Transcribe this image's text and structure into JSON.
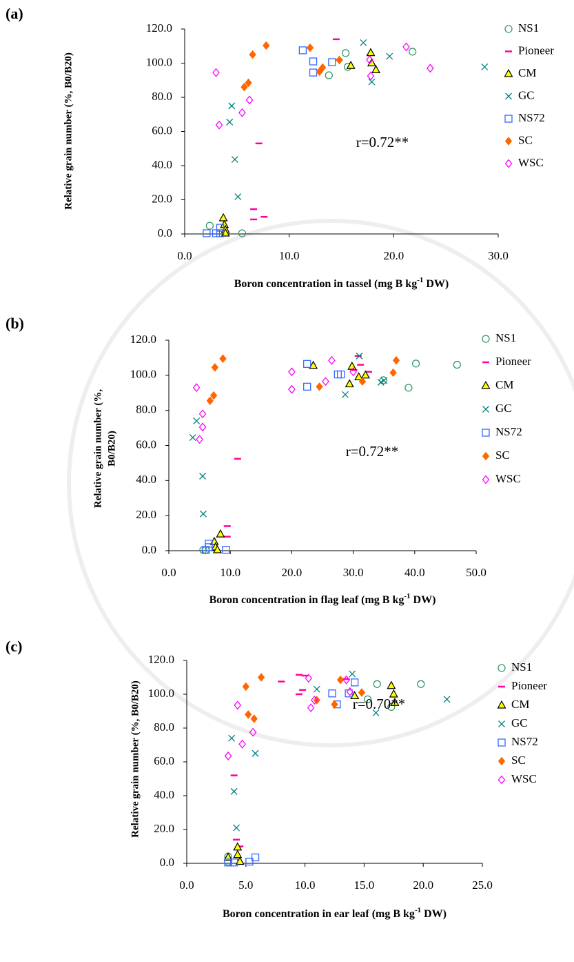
{
  "chart_data": [
    {
      "type": "scatter",
      "panel": "(a)",
      "ylabel": [
        "Relative grain number (%, B0/B20)"
      ],
      "xlabel": [
        "Boron concentration in tassel (mg B kg",
        "-1",
        " DW)"
      ],
      "annotation": "r=0.72**",
      "xlim": [
        0,
        30
      ],
      "ylim": [
        0,
        120
      ],
      "xticks": [
        {
          "value": 0,
          "label": "0.0"
        },
        {
          "value": 10,
          "label": "10.0"
        },
        {
          "value": 20,
          "label": "20.0"
        },
        {
          "value": 30,
          "label": "30.0"
        }
      ],
      "yticks": [
        {
          "value": 0,
          "label": "0.0"
        },
        {
          "value": 20,
          "label": "20.0"
        },
        {
          "value": 40,
          "label": "40.0"
        },
        {
          "value": 60,
          "label": "60.0"
        },
        {
          "value": 80,
          "label": "80.0"
        },
        {
          "value": 100,
          "label": "100.0"
        },
        {
          "value": 120,
          "label": "120.0"
        }
      ],
      "series": [
        {
          "name": "NS1",
          "color": "#339966",
          "marker": "circle",
          "x": [
            2.4,
            5.5,
            13.8,
            15.4,
            15.6,
            21.8
          ],
          "values": [
            4.8,
            0.4,
            92.9,
            105.9,
            97.8,
            106.7
          ]
        },
        {
          "name": "Pioneer",
          "color": "#ff0099",
          "marker": "dash",
          "x": [
            14.5,
            14.8,
            7.1,
            6.6,
            6.6,
            7.6
          ],
          "values": [
            114,
            102,
            53,
            14.5,
            8.5,
            10
          ]
        },
        {
          "name": "CM",
          "color": "#ffff00",
          "marker": "triangle",
          "x": [
            3.7,
            3.8,
            3.9,
            3.9,
            17.8,
            17.9,
            18.3,
            15.9
          ],
          "values": [
            9.3,
            5.3,
            2.4,
            0.4,
            106,
            100,
            96,
            98.5
          ]
        },
        {
          "name": "GC",
          "color": "#008080",
          "marker": "cross",
          "x": [
            4.5,
            4.3,
            4.8,
            5.1,
            17.1,
            17.9,
            19.6,
            28.7
          ],
          "values": [
            75,
            65.5,
            43.6,
            21.8,
            112,
            89,
            104,
            97.8
          ]
        },
        {
          "name": "NS72",
          "color": "#3366ff",
          "marker": "square",
          "x": [
            2.1,
            3.0,
            3.4,
            3.4,
            11.3,
            12.3,
            12.3,
            14.1
          ],
          "values": [
            0.4,
            0.4,
            3.6,
            0.4,
            107.5,
            101,
            94.5,
            100.6
          ]
        },
        {
          "name": "SC",
          "color": "#ff6600",
          "marker": "diamond-filled",
          "x": [
            5.7,
            6.1,
            6.5,
            7.8,
            12.0,
            12.9,
            13.2,
            14.8
          ],
          "values": [
            86,
            88.5,
            105,
            110.3,
            109,
            95,
            97.4,
            101.8
          ]
        },
        {
          "name": "WSC",
          "color": "#ff00ff",
          "marker": "diamond-open",
          "x": [
            3.0,
            3.3,
            5.5,
            6.2,
            17.7,
            17.8,
            21.2,
            23.5
          ],
          "values": [
            94.5,
            63.8,
            71,
            78.4,
            102,
            92.5,
            109.5,
            97
          ]
        }
      ]
    },
    {
      "type": "scatter",
      "panel": "(b)",
      "ylabel": [
        "Relative grain number (%,",
        "B0/B20)"
      ],
      "xlabel": [
        "Boron concentration in flag leaf (mg B kg",
        "-1",
        " DW)"
      ],
      "annotation": "r=0.72**",
      "xlim": [
        0,
        50
      ],
      "ylim": [
        0,
        120
      ],
      "xticks": [
        {
          "value": 0,
          "label": "0.0"
        },
        {
          "value": 10,
          "label": "10.0"
        },
        {
          "value": 20,
          "label": "20.0"
        },
        {
          "value": 30,
          "label": "30.0"
        },
        {
          "value": 40,
          "label": "40.0"
        },
        {
          "value": 50,
          "label": "50.0"
        }
      ],
      "yticks": [
        {
          "value": 0,
          "label": "0.0"
        },
        {
          "value": 20,
          "label": "20.0"
        },
        {
          "value": 40,
          "label": "40.0"
        },
        {
          "value": 60,
          "label": "60.0"
        },
        {
          "value": 80,
          "label": "80.0"
        },
        {
          "value": 100,
          "label": "100.0"
        },
        {
          "value": 120,
          "label": "120.0"
        }
      ],
      "series": [
        {
          "name": "NS1",
          "color": "#339966",
          "marker": "circle",
          "x": [
            5.6,
            6.0,
            34.9,
            39.0,
            40.2,
            46.9
          ],
          "values": [
            0.4,
            0.4,
            97.2,
            92.9,
            106.7,
            106
          ]
        },
        {
          "name": "Pioneer",
          "color": "#ff0099",
          "marker": "dash",
          "x": [
            11.2,
            9.5,
            9.5,
            30.8,
            30.1,
            32.5,
            31.2
          ],
          "values": [
            52.4,
            14,
            8,
            111,
            103,
            102,
            106
          ]
        },
        {
          "name": "CM",
          "color": "#ffff00",
          "marker": "triangle",
          "x": [
            8.4,
            7.4,
            7.6,
            7.9,
            29.8,
            30.9,
            29.4,
            32.0,
            23.5
          ],
          "values": [
            9.4,
            5.1,
            2,
            0.4,
            105,
            99,
            95,
            100,
            105.5
          ]
        },
        {
          "name": "GC",
          "color": "#008080",
          "marker": "cross",
          "x": [
            4.5,
            3.9,
            5.5,
            5.6,
            31.0,
            28.7,
            35.0,
            34.5
          ],
          "values": [
            74,
            64.5,
            42.5,
            21,
            111,
            89,
            97,
            96
          ]
        },
        {
          "name": "NS72",
          "color": "#3366ff",
          "marker": "square",
          "x": [
            6.0,
            6.5,
            6.5,
            9.3,
            22.5,
            22.5,
            28.0,
            27.5
          ],
          "values": [
            0.4,
            2,
            4,
            0.5,
            106.5,
            93.5,
            100.5,
            100.5
          ]
        },
        {
          "name": "SC",
          "color": "#ff6600",
          "marker": "diamond-filled",
          "x": [
            6.7,
            7.3,
            7.5,
            8.8,
            24.5,
            31.5,
            36.5,
            37.0
          ],
          "values": [
            85.5,
            88.5,
            104.5,
            109.5,
            93.5,
            96.5,
            101.5,
            108.5
          ]
        },
        {
          "name": "WSC",
          "color": "#ff00ff",
          "marker": "diamond-open",
          "x": [
            4.5,
            5.5,
            5.5,
            5.0,
            20.0,
            20.0,
            25.5,
            26.5,
            30.0
          ],
          "values": [
            93,
            78,
            70.5,
            63.5,
            102,
            92,
            96.5,
            108.5,
            102
          ]
        }
      ]
    },
    {
      "type": "scatter",
      "panel": "(c)",
      "ylabel": [
        "Relative grain number (%, B0/B20)"
      ],
      "xlabel": [
        "Boron concentration in ear leaf (mg B kg",
        "-1",
        " DW)"
      ],
      "annotation": "r=0.70**",
      "xlim": [
        0,
        25
      ],
      "ylim": [
        0,
        120
      ],
      "xticks": [
        {
          "value": 0,
          "label": "0.0"
        },
        {
          "value": 5,
          "label": "5.0"
        },
        {
          "value": 10,
          "label": "10.0"
        },
        {
          "value": 15,
          "label": "15.0"
        },
        {
          "value": 20,
          "label": "20.0"
        },
        {
          "value": 25,
          "label": "25.0"
        }
      ],
      "yticks": [
        {
          "value": 0,
          "label": "0.0"
        },
        {
          "value": 20,
          "label": "20.0"
        },
        {
          "value": 40,
          "label": "40.0"
        },
        {
          "value": 60,
          "label": "60.0"
        },
        {
          "value": 80,
          "label": "80.0"
        },
        {
          "value": 100,
          "label": "100.0"
        },
        {
          "value": 120,
          "label": "120.0"
        }
      ],
      "series": [
        {
          "name": "NS1",
          "color": "#339966",
          "marker": "circle",
          "x": [
            3.5,
            3.5,
            15.3,
            16.1,
            17.3,
            19.8
          ],
          "values": [
            1,
            4,
            97,
            106,
            92.5,
            106
          ]
        },
        {
          "name": "Pioneer",
          "color": "#ff0099",
          "marker": "dash",
          "x": [
            4.0,
            4.2,
            4.5,
            8.0,
            9.5,
            9.5,
            9.8,
            10.0,
            13.5
          ],
          "values": [
            52,
            14,
            10,
            107.5,
            111.5,
            100,
            102.5,
            111,
            109
          ]
        },
        {
          "name": "CM",
          "color": "#ffff00",
          "marker": "triangle",
          "x": [
            4.3,
            4.3,
            4.5,
            3.5,
            14.2,
            17.3,
            17.5,
            17.6
          ],
          "values": [
            9.5,
            5,
            1,
            3.5,
            99,
            105,
            100,
            95
          ]
        },
        {
          "name": "GC",
          "color": "#008080",
          "marker": "cross",
          "x": [
            3.8,
            4.0,
            4.2,
            5.8,
            11.0,
            14.0,
            16.0,
            22.0
          ],
          "values": [
            74,
            42.5,
            21,
            65,
            103,
            112,
            89,
            97
          ]
        },
        {
          "name": "NS72",
          "color": "#3366ff",
          "marker": "square",
          "x": [
            3.5,
            4.0,
            5.3,
            5.8,
            12.3,
            12.7,
            13.7,
            14.2
          ],
          "values": [
            0.5,
            0.5,
            1,
            3.5,
            100.5,
            94,
            100.5,
            107
          ]
        },
        {
          "name": "SC",
          "color": "#ff6600",
          "marker": "diamond-filled",
          "x": [
            5.0,
            5.2,
            5.7,
            6.3,
            11.0,
            12.5,
            13.0,
            14.8
          ],
          "values": [
            104.5,
            88,
            85.5,
            110,
            96.5,
            94,
            108.5,
            101
          ]
        },
        {
          "name": "WSC",
          "color": "#ff00ff",
          "marker": "diamond-open",
          "x": [
            3.5,
            4.3,
            4.7,
            5.6,
            10.5,
            10.8,
            10.3,
            13.8,
            13.5
          ],
          "values": [
            63.5,
            93.5,
            70.5,
            77.5,
            92,
            96.5,
            109.5,
            101.5,
            108.5
          ]
        }
      ]
    }
  ]
}
